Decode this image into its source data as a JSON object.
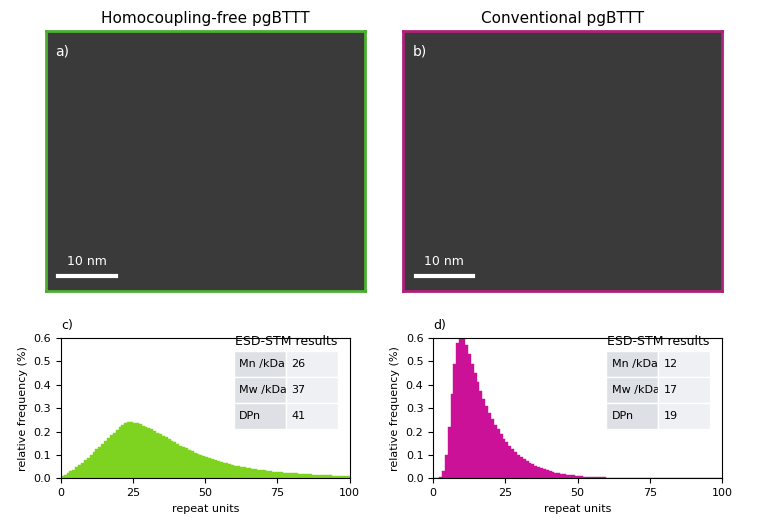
{
  "images": [
    {
      "label": "a)",
      "title": "Homocoupling-free pgBTTT",
      "scale_bar": "10 nm",
      "color": "#4caf32"
    },
    {
      "label": "b)",
      "title": "Conventional pgBTTT",
      "scale_bar": "10 nm",
      "color": "#b0207a"
    }
  ],
  "chart_data": [
    {
      "type": "histogram",
      "label": "c)",
      "xlabel": "repeat units",
      "ylabel": "relative frequency (%)",
      "color": "#7ed321",
      "bins": [
        0,
        1,
        2,
        3,
        4,
        5,
        6,
        7,
        8,
        9,
        10,
        11,
        12,
        13,
        14,
        15,
        16,
        17,
        18,
        19,
        20,
        21,
        22,
        23,
        24,
        25,
        26,
        27,
        28,
        29,
        30,
        31,
        32,
        33,
        34,
        35,
        36,
        37,
        38,
        39,
        40,
        41,
        42,
        43,
        44,
        45,
        46,
        47,
        48,
        49,
        50,
        51,
        52,
        53,
        54,
        55,
        56,
        57,
        58,
        59,
        60,
        61,
        62,
        63,
        64,
        65,
        66,
        67,
        68,
        69,
        70,
        71,
        72,
        73,
        74,
        75,
        76,
        77,
        78,
        79,
        80,
        81,
        82,
        83,
        84,
        85,
        86,
        87,
        88,
        89,
        90,
        91,
        92,
        93,
        94,
        95,
        96,
        97,
        98,
        99,
        100
      ],
      "counts": [
        0.01,
        0.015,
        0.022,
        0.03,
        0.038,
        0.047,
        0.057,
        0.067,
        0.078,
        0.089,
        0.1,
        0.112,
        0.124,
        0.136,
        0.148,
        0.16,
        0.172,
        0.184,
        0.196,
        0.207,
        0.218,
        0.228,
        0.236,
        0.24,
        0.24,
        0.238,
        0.235,
        0.231,
        0.226,
        0.221,
        0.215,
        0.209,
        0.202,
        0.196,
        0.189,
        0.182,
        0.175,
        0.168,
        0.161,
        0.154,
        0.147,
        0.14,
        0.134,
        0.128,
        0.122,
        0.116,
        0.11,
        0.105,
        0.1,
        0.095,
        0.09,
        0.086,
        0.082,
        0.078,
        0.074,
        0.07,
        0.067,
        0.064,
        0.061,
        0.058,
        0.055,
        0.052,
        0.05,
        0.047,
        0.045,
        0.043,
        0.041,
        0.039,
        0.037,
        0.035,
        0.034,
        0.032,
        0.031,
        0.029,
        0.028,
        0.027,
        0.026,
        0.025,
        0.024,
        0.023,
        0.022,
        0.021,
        0.02,
        0.019,
        0.018,
        0.018,
        0.017,
        0.016,
        0.016,
        0.015,
        0.015,
        0.014,
        0.013,
        0.013,
        0.012,
        0.012,
        0.011,
        0.011,
        0.01,
        0.01
      ],
      "xlim": [
        0,
        100
      ],
      "ylim": [
        0.0,
        0.6
      ],
      "xticks": [
        0,
        25,
        50,
        75,
        100
      ],
      "yticks": [
        0.0,
        0.1,
        0.2,
        0.3,
        0.4,
        0.5,
        0.6
      ],
      "table": {
        "title": "ESD-STM results",
        "rows": [
          [
            "Mn /kDa",
            26
          ],
          [
            "Mw /kDa",
            37
          ],
          [
            "DPn",
            41
          ]
        ]
      }
    },
    {
      "type": "histogram",
      "label": "d)",
      "xlabel": "repeat units",
      "ylabel": "relative frequency (%)",
      "color": "#cc1199",
      "bins": [
        0,
        1,
        2,
        3,
        4,
        5,
        6,
        7,
        8,
        9,
        10,
        11,
        12,
        13,
        14,
        15,
        16,
        17,
        18,
        19,
        20,
        21,
        22,
        23,
        24,
        25,
        26,
        27,
        28,
        29,
        30,
        31,
        32,
        33,
        34,
        35,
        36,
        37,
        38,
        39,
        40,
        41,
        42,
        43,
        44,
        45,
        46,
        47,
        48,
        49,
        50,
        51,
        52,
        53,
        54,
        55,
        56,
        57,
        58,
        59,
        60,
        61,
        62,
        63,
        64,
        65,
        66,
        67,
        68,
        69,
        70,
        71,
        72,
        73,
        74,
        75,
        76,
        77,
        78,
        79,
        80,
        81,
        82,
        83,
        84,
        85,
        86,
        87,
        88,
        89,
        90,
        91,
        92,
        93,
        94,
        95,
        96,
        97,
        98,
        99,
        100
      ],
      "counts": [
        0.0,
        0.0,
        0.005,
        0.03,
        0.1,
        0.22,
        0.36,
        0.49,
        0.58,
        0.61,
        0.6,
        0.57,
        0.53,
        0.49,
        0.45,
        0.41,
        0.375,
        0.34,
        0.31,
        0.28,
        0.255,
        0.23,
        0.21,
        0.19,
        0.17,
        0.155,
        0.14,
        0.125,
        0.113,
        0.102,
        0.092,
        0.083,
        0.075,
        0.067,
        0.06,
        0.054,
        0.049,
        0.044,
        0.039,
        0.035,
        0.032,
        0.028,
        0.025,
        0.023,
        0.02,
        0.018,
        0.016,
        0.015,
        0.013,
        0.012,
        0.01,
        0.009,
        0.008,
        0.007,
        0.007,
        0.006,
        0.005,
        0.005,
        0.004,
        0.004,
        0.003,
        0.003,
        0.003,
        0.002,
        0.002,
        0.002,
        0.002,
        0.001,
        0.001,
        0.001,
        0.001,
        0.001,
        0.001,
        0.001,
        0.001,
        0.001,
        0.0,
        0.0,
        0.0,
        0.0,
        0.0,
        0.0,
        0.0,
        0.0,
        0.0,
        0.0,
        0.0,
        0.0,
        0.0,
        0.0,
        0.0,
        0.0,
        0.0,
        0.0,
        0.0,
        0.0,
        0.0,
        0.0,
        0.0,
        0.0
      ],
      "xlim": [
        0,
        100
      ],
      "ylim": [
        0.0,
        0.6
      ],
      "xticks": [
        0,
        25,
        50,
        75,
        100
      ],
      "yticks": [
        0.0,
        0.1,
        0.2,
        0.3,
        0.4,
        0.5,
        0.6
      ],
      "table": {
        "title": "ESD-STM results",
        "rows": [
          [
            "Mn /kDa",
            12
          ],
          [
            "Mw /kDa",
            17
          ],
          [
            "DPn",
            19
          ]
        ]
      }
    }
  ]
}
